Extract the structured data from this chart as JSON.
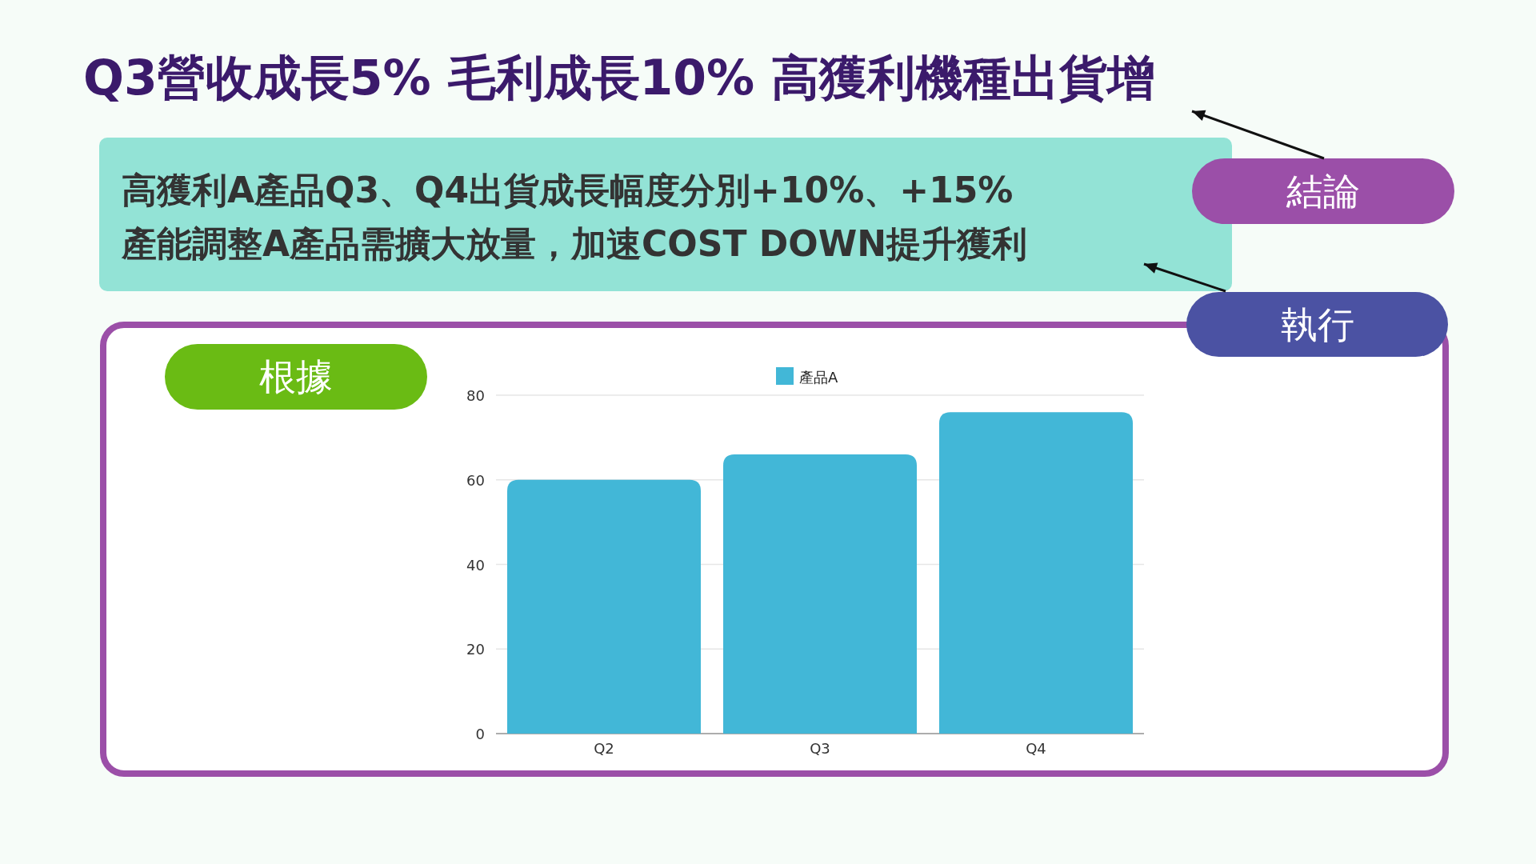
{
  "chart_data": {
    "type": "bar",
    "title": "Q3營收成長5% 毛利成長10% 高獲利機種出貨增",
    "annotations": [
      "高獲利A產品Q3、Q4出貨成長幅度分別+10%、+15%",
      "產能調整A產品需擴大放量，加速COST  DOWN提升獲利",
      "結論",
      "執行",
      "根據"
    ],
    "categories": [
      "Q2",
      "Q3",
      "Q4"
    ],
    "series": [
      {
        "name": "產品A",
        "color": "#42b7d7",
        "values": [
          60,
          66,
          76
        ]
      }
    ],
    "ylim": [
      0,
      80
    ],
    "yticks": [
      0,
      20,
      40,
      60,
      80
    ],
    "grid": "y",
    "legend": "top"
  }
}
